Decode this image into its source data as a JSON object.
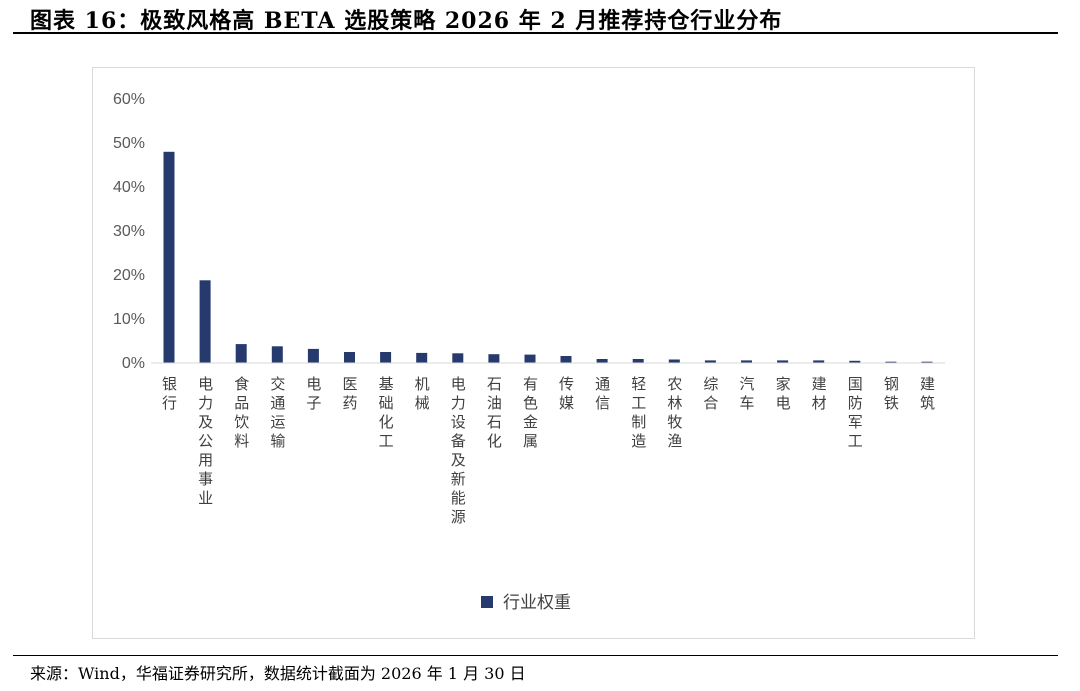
{
  "header": {
    "title": "图表 16：极致风格高 BETA 选股策略 2026 年 2 月推荐持仓行业分布"
  },
  "footer": {
    "source": "来源：Wind，华福证券研究所，数据统计截面为 2026 年 1 月 30 日"
  },
  "colors": {
    "bar": "#263a6e",
    "axis": "#d9d9d9"
  },
  "chart_data": {
    "type": "bar",
    "title": "",
    "categories": [
      "银行",
      "电力及公用事业",
      "食品饮料",
      "交通运输",
      "电子",
      "医药",
      "基础化工",
      "机械",
      "电力设备及新能源",
      "石油石化",
      "有色金属",
      "传媒",
      "通信",
      "轻工制造",
      "农林牧渔",
      "综合",
      "汽车",
      "家电",
      "建材",
      "国防军工",
      "钢铁",
      "建筑"
    ],
    "series": [
      {
        "name": "行业权重",
        "values": [
          48.0,
          18.8,
          4.3,
          3.8,
          3.2,
          2.5,
          2.5,
          2.3,
          2.2,
          2.0,
          1.9,
          1.6,
          0.9,
          0.9,
          0.8,
          0.6,
          0.6,
          0.6,
          0.6,
          0.5,
          0.3,
          0.3
        ]
      }
    ],
    "yticks": [
      "0%",
      "10%",
      "20%",
      "30%",
      "40%",
      "50%",
      "60%"
    ],
    "ylim": [
      0,
      60
    ],
    "xlabel": "",
    "ylabel": "",
    "grid": false,
    "legend": "bottom"
  }
}
